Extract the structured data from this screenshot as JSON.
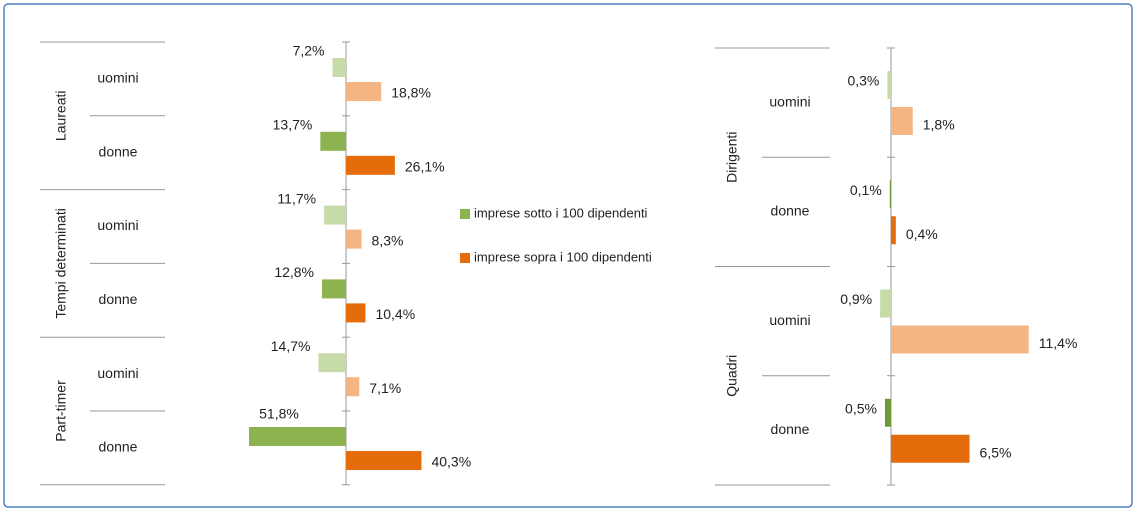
{
  "chart_data": [
    {
      "type": "diverging-bar",
      "groups": [
        "Laureati",
        "Tempi determinati",
        "Part-timer"
      ],
      "categories": [
        "uomini",
        "donne",
        "uomini",
        "donne",
        "uomini",
        "donne"
      ],
      "xlim": [
        0,
        55
      ],
      "series": [
        {
          "name": "imprese sotto i 100 dipendenti",
          "color": "#8db250",
          "light_color": "#c6dba8",
          "side": "left",
          "values": [
            7.2,
            13.7,
            11.7,
            12.8,
            14.7,
            51.8
          ],
          "value_labels": [
            "7,2%",
            "13,7%",
            "11,7%",
            "12,8%",
            "14,7%",
            "51,8%"
          ]
        },
        {
          "name": "imprese sopra i 100 dipendenti",
          "color": "#e46c0a",
          "light_color": "#f4b585",
          "side": "right",
          "values": [
            18.8,
            26.1,
            8.3,
            10.4,
            7.1,
            40.3
          ],
          "value_labels": [
            "18,8%",
            "26,1%",
            "8,3%",
            "10,4%",
            "7,1%",
            "40,3%"
          ]
        }
      ]
    },
    {
      "type": "diverging-bar",
      "groups": [
        "Dirigenti",
        "Quadri"
      ],
      "categories": [
        "uomini",
        "donne",
        "uomini",
        "donne"
      ],
      "xlim": [
        0,
        12
      ],
      "series": [
        {
          "color": "#6e9a3c",
          "light_color": "#c6dba8",
          "side": "left",
          "values": [
            0.3,
            0.1,
            0.9,
            0.5
          ],
          "value_labels": [
            "0,3%",
            "0,1%",
            "0,9%",
            "0,5%"
          ]
        },
        {
          "color": "#e46c0a",
          "light_color": "#f4b585",
          "side": "right",
          "values": [
            1.8,
            0.4,
            11.4,
            6.5
          ],
          "value_labels": [
            "1,8%",
            "0,4%",
            "11,4%",
            "6,5%"
          ]
        }
      ]
    }
  ]
}
